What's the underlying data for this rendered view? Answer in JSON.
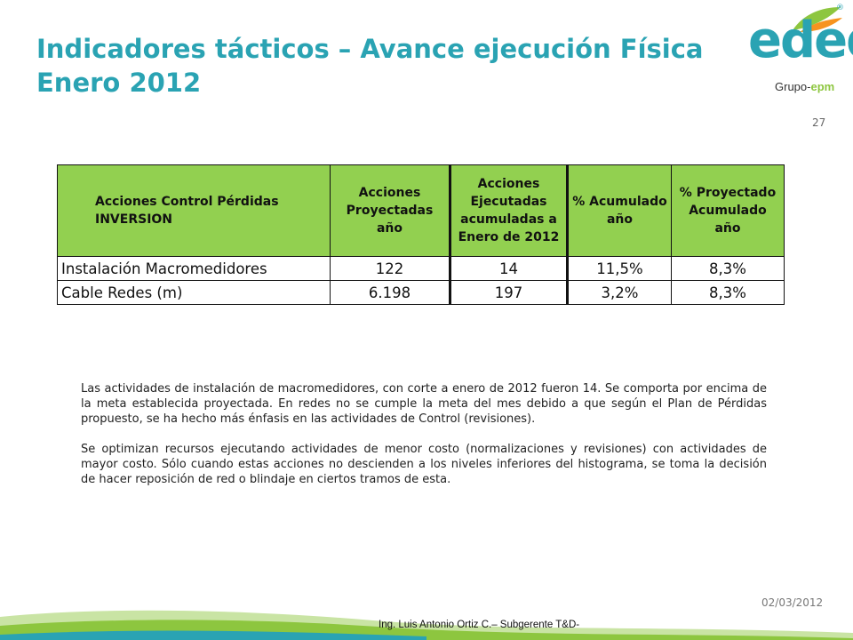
{
  "slide": {
    "title_line1": "Indicadores tácticos – Avance ejecución Física",
    "title_line2": "Enero 2012",
    "page_number": "27"
  },
  "logo": {
    "brand": "edeq",
    "registered": "®",
    "group_prefix": "Grupo-",
    "group_suffix": "epm",
    "colors": {
      "teal": "#2aa3b3",
      "green": "#8dc63f",
      "orange": "#f7931e"
    }
  },
  "table": {
    "header_color": "#92d050",
    "headers": [
      "Acciones Control Pérdidas INVERSION",
      "Acciones Proyectadas año",
      "Acciones Ejecutadas acumuladas a Enero de 2012",
      "% Acumulado año",
      "% Proyectado Acumulado año"
    ],
    "rows": [
      {
        "label": "Instalación Macromedidores",
        "proyectadas": "122",
        "ejecutadas": "14",
        "acumulado": "11,5%",
        "proyectado": "8,3%"
      },
      {
        "label": "Cable Redes (m)",
        "proyectadas": "6.198",
        "ejecutadas": "197",
        "acumulado": "3,2%",
        "proyectado": "8,3%"
      }
    ]
  },
  "body": {
    "paragraph1": "Las actividades de instalación de macromedidores, con corte a enero de 2012 fueron 14.  Se comporta por encima de la meta establecida proyectada.  En redes no se cumple la meta del mes debido a que según el Plan de Pérdidas propuesto, se ha hecho más énfasis en las actividades de Control (revisiones).",
    "paragraph2": "Se optimizan recursos ejecutando actividades de menor costo (normalizaciones y revisiones) con actividades de mayor costo. Sólo cuando estas acciones no descienden a los niveles inferiores del histograma, se toma la decisión de hacer reposición de red o blindaje en ciertos tramos de esta."
  },
  "footer": {
    "date": "02/03/2012",
    "author": "Ing. Luis Antonio Ortiz C.– Subgerente T&D-"
  }
}
